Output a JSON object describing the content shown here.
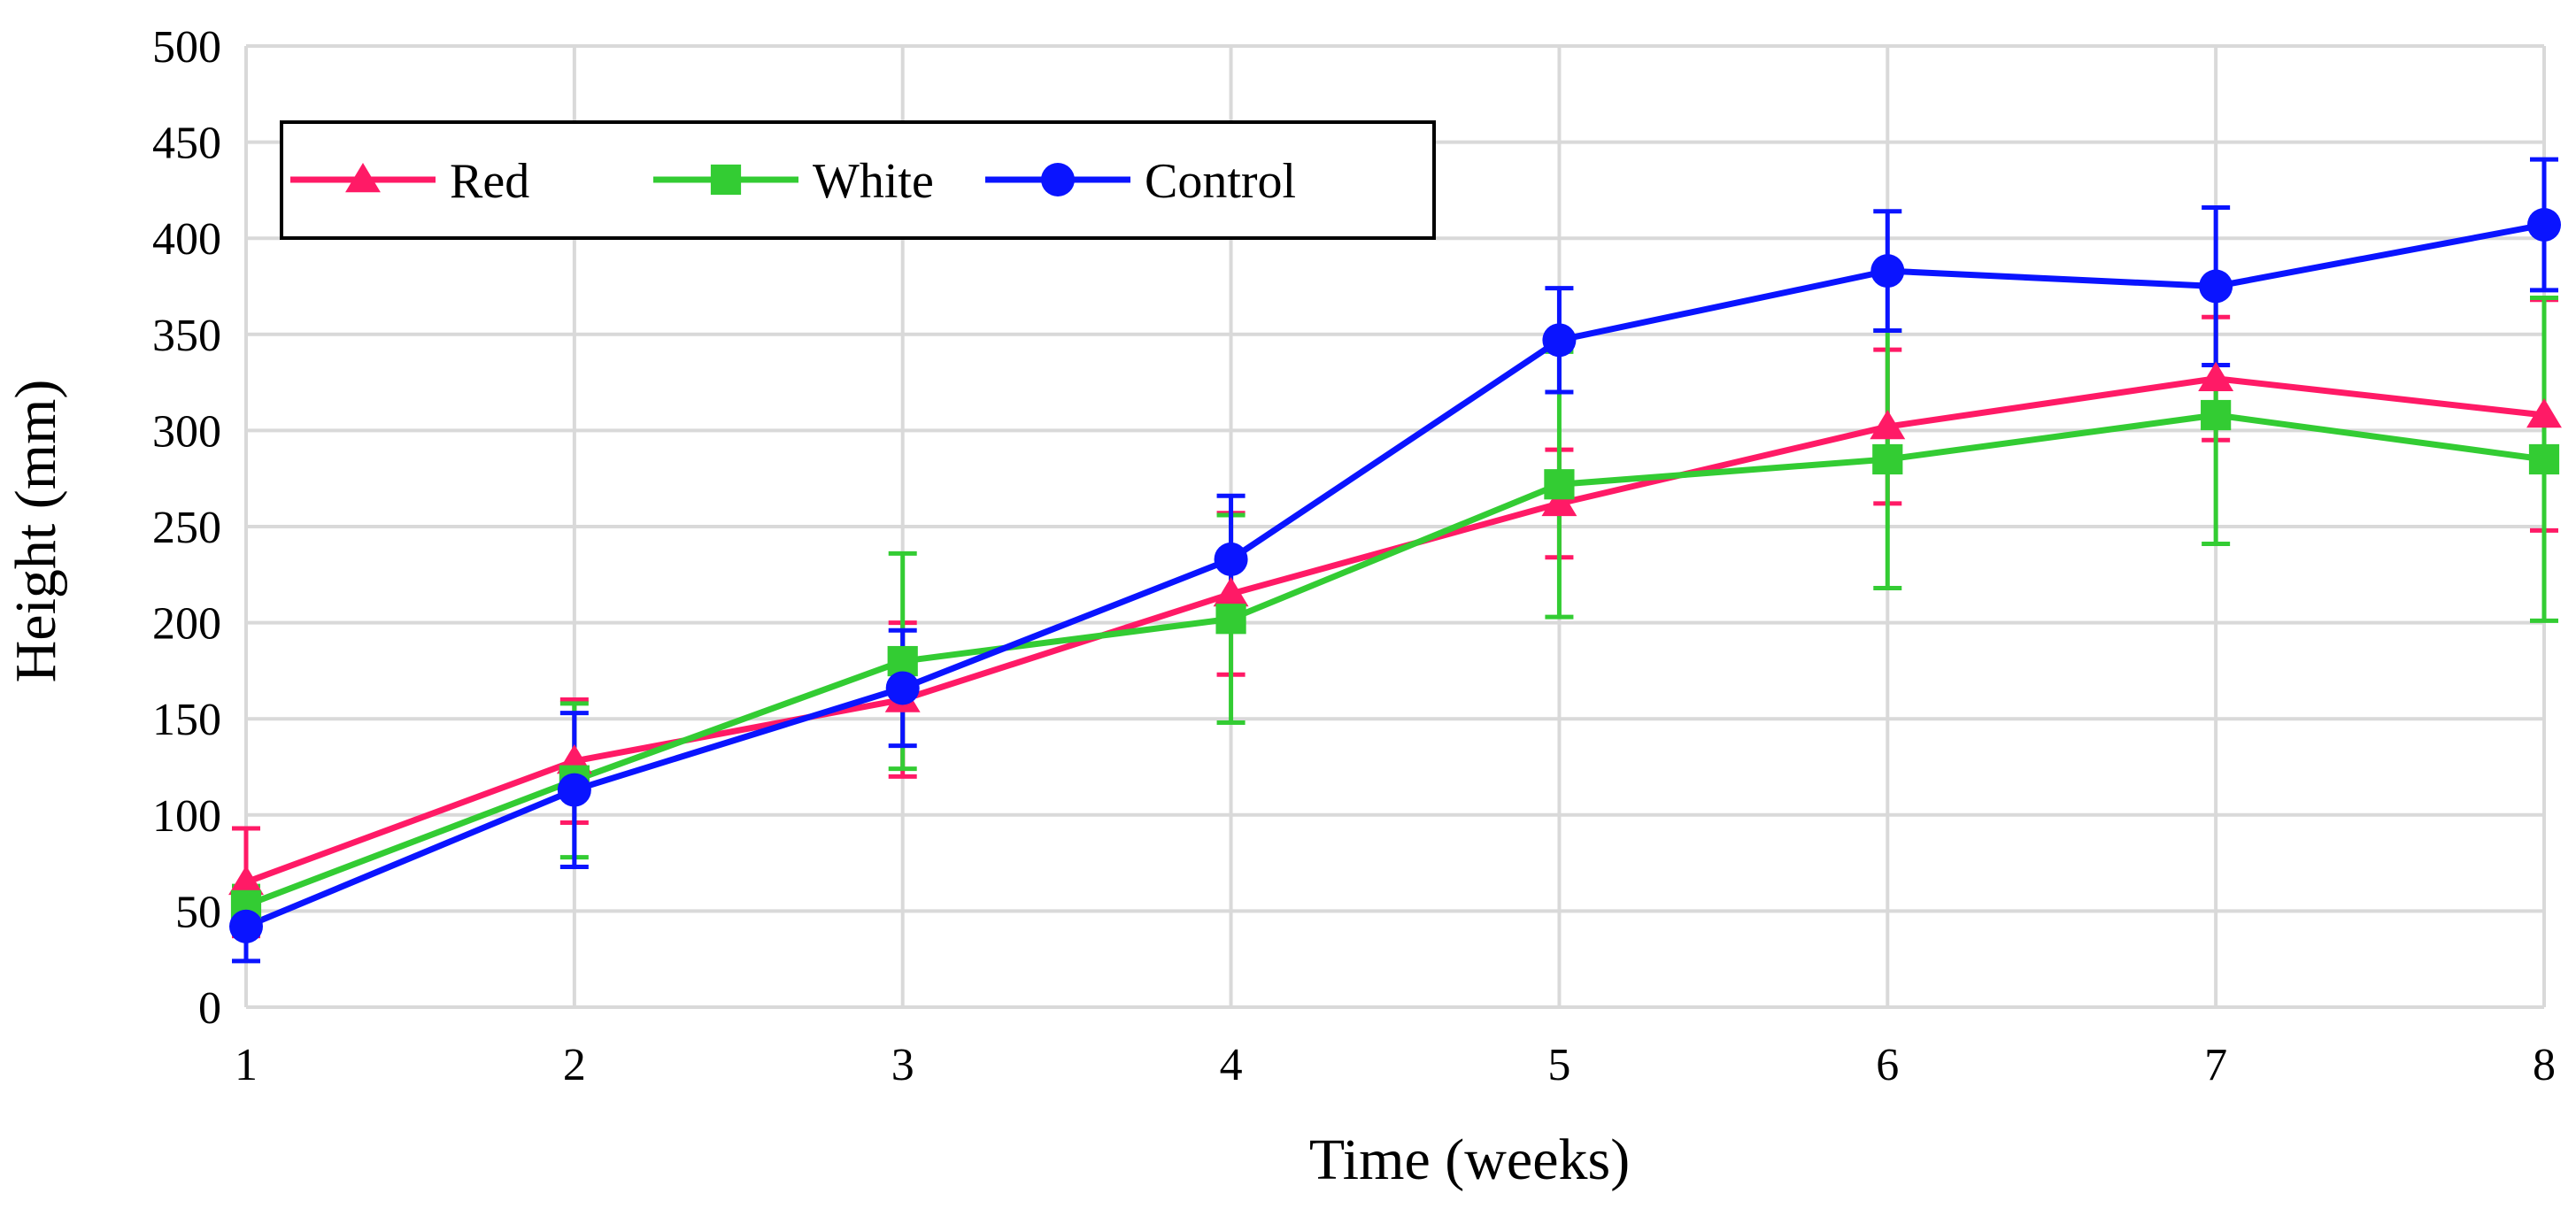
{
  "chart_data": {
    "type": "line",
    "title": "",
    "xlabel": "Time (weeks)",
    "ylabel": "Height (mm)",
    "x": [
      1,
      2,
      3,
      4,
      5,
      6,
      7,
      8
    ],
    "xlim": [
      1,
      8
    ],
    "ylim": [
      0,
      500
    ],
    "yticks": [
      0,
      50,
      100,
      150,
      200,
      250,
      300,
      350,
      400,
      450,
      500
    ],
    "xticks": [
      1,
      2,
      3,
      4,
      5,
      6,
      7,
      8
    ],
    "grid": true,
    "legend_position": "top-left",
    "series": [
      {
        "name": "Red",
        "color": "#FF1A66",
        "marker": "triangle",
        "values": [
          65,
          128,
          160,
          215,
          262,
          302,
          327,
          308
        ],
        "errors": [
          28,
          32,
          40,
          42,
          28,
          40,
          32,
          60
        ]
      },
      {
        "name": "White",
        "color": "#33CC33",
        "marker": "square",
        "values": [
          53,
          118,
          180,
          202,
          272,
          285,
          308,
          285
        ],
        "errors": [
          10,
          40,
          56,
          54,
          69,
          67,
          67,
          84
        ]
      },
      {
        "name": "Control",
        "color": "#0A14FF",
        "marker": "circle",
        "values": [
          42,
          113,
          166,
          233,
          347,
          383,
          375,
          407
        ],
        "errors": [
          18,
          40,
          30,
          33,
          27,
          31,
          41,
          34
        ]
      }
    ]
  }
}
